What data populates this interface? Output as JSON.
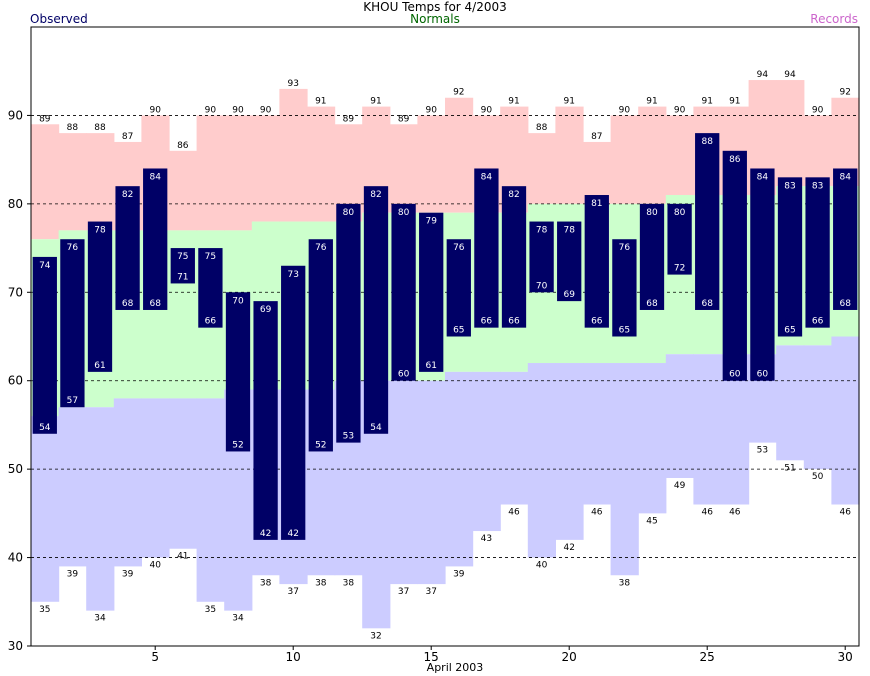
{
  "chart_data": {
    "type": "bar",
    "title": "KHOU Temps for 4/2003",
    "xlabel": "April 2003",
    "ylabel": "",
    "xlim": [
      0.5,
      30.5
    ],
    "ylim": [
      30,
      100
    ],
    "x_ticks": [
      5,
      10,
      15,
      20,
      25,
      30
    ],
    "y_ticks": [
      30,
      40,
      50,
      60,
      70,
      80,
      90
    ],
    "dashed_gridlines": [
      40,
      50,
      60,
      70,
      80,
      90
    ],
    "days": [
      1,
      2,
      3,
      4,
      5,
      6,
      7,
      8,
      9,
      10,
      11,
      12,
      13,
      14,
      15,
      16,
      17,
      18,
      19,
      20,
      21,
      22,
      23,
      24,
      25,
      26,
      27,
      28,
      29,
      30
    ],
    "legend": {
      "observed": "Observed",
      "normals": "Normals",
      "records": "Records",
      "placement": "top"
    },
    "colors": {
      "observed": "#000066",
      "normals": "#ccffcc",
      "normal_label": "#006600",
      "record_high": "#ffcccc",
      "record_low": "#ccccff",
      "record_label": "#cc66cc",
      "observed_label": "#000066"
    },
    "series": [
      {
        "name": "Observed",
        "kind": "high",
        "values": [
          74,
          76,
          78,
          82,
          84,
          75,
          75,
          70,
          69,
          73,
          76,
          80,
          82,
          80,
          79,
          76,
          84,
          82,
          78,
          78,
          81,
          76,
          80,
          80,
          88,
          86,
          84,
          83,
          83,
          84
        ]
      },
      {
        "name": "Observed",
        "kind": "low",
        "values": [
          54,
          57,
          61,
          68,
          68,
          71,
          66,
          52,
          42,
          42,
          52,
          53,
          54,
          60,
          61,
          65,
          66,
          66,
          70,
          69,
          66,
          65,
          68,
          72,
          68,
          60,
          60,
          65,
          66,
          68
        ]
      },
      {
        "name": "Normals",
        "kind": "high",
        "values": [
          76,
          77,
          77,
          77,
          77,
          77,
          77,
          77,
          78,
          78,
          78,
          78,
          79,
          79,
          79,
          79,
          79,
          79,
          80,
          80,
          80,
          80,
          80,
          81,
          81,
          81,
          81,
          82,
          82,
          82
        ]
      },
      {
        "name": "Normals",
        "kind": "low",
        "values": [
          56,
          57,
          57,
          58,
          58,
          58,
          58,
          59,
          59,
          59,
          59,
          60,
          60,
          60,
          60,
          61,
          61,
          61,
          62,
          62,
          62,
          62,
          62,
          63,
          63,
          63,
          63,
          64,
          64,
          65
        ]
      },
      {
        "name": "Records",
        "kind": "high",
        "values": [
          89,
          88,
          88,
          87,
          90,
          86,
          90,
          90,
          90,
          93,
          91,
          89,
          91,
          89,
          90,
          92,
          90,
          91,
          88,
          91,
          87,
          90,
          91,
          90,
          91,
          91,
          94,
          94,
          90,
          92
        ]
      },
      {
        "name": "Records",
        "kind": "low",
        "values": [
          35,
          39,
          34,
          39,
          40,
          41,
          35,
          34,
          38,
          37,
          38,
          38,
          32,
          37,
          37,
          39,
          43,
          46,
          40,
          42,
          46,
          38,
          45,
          49,
          46,
          46,
          53,
          51,
          50,
          46
        ]
      }
    ]
  }
}
